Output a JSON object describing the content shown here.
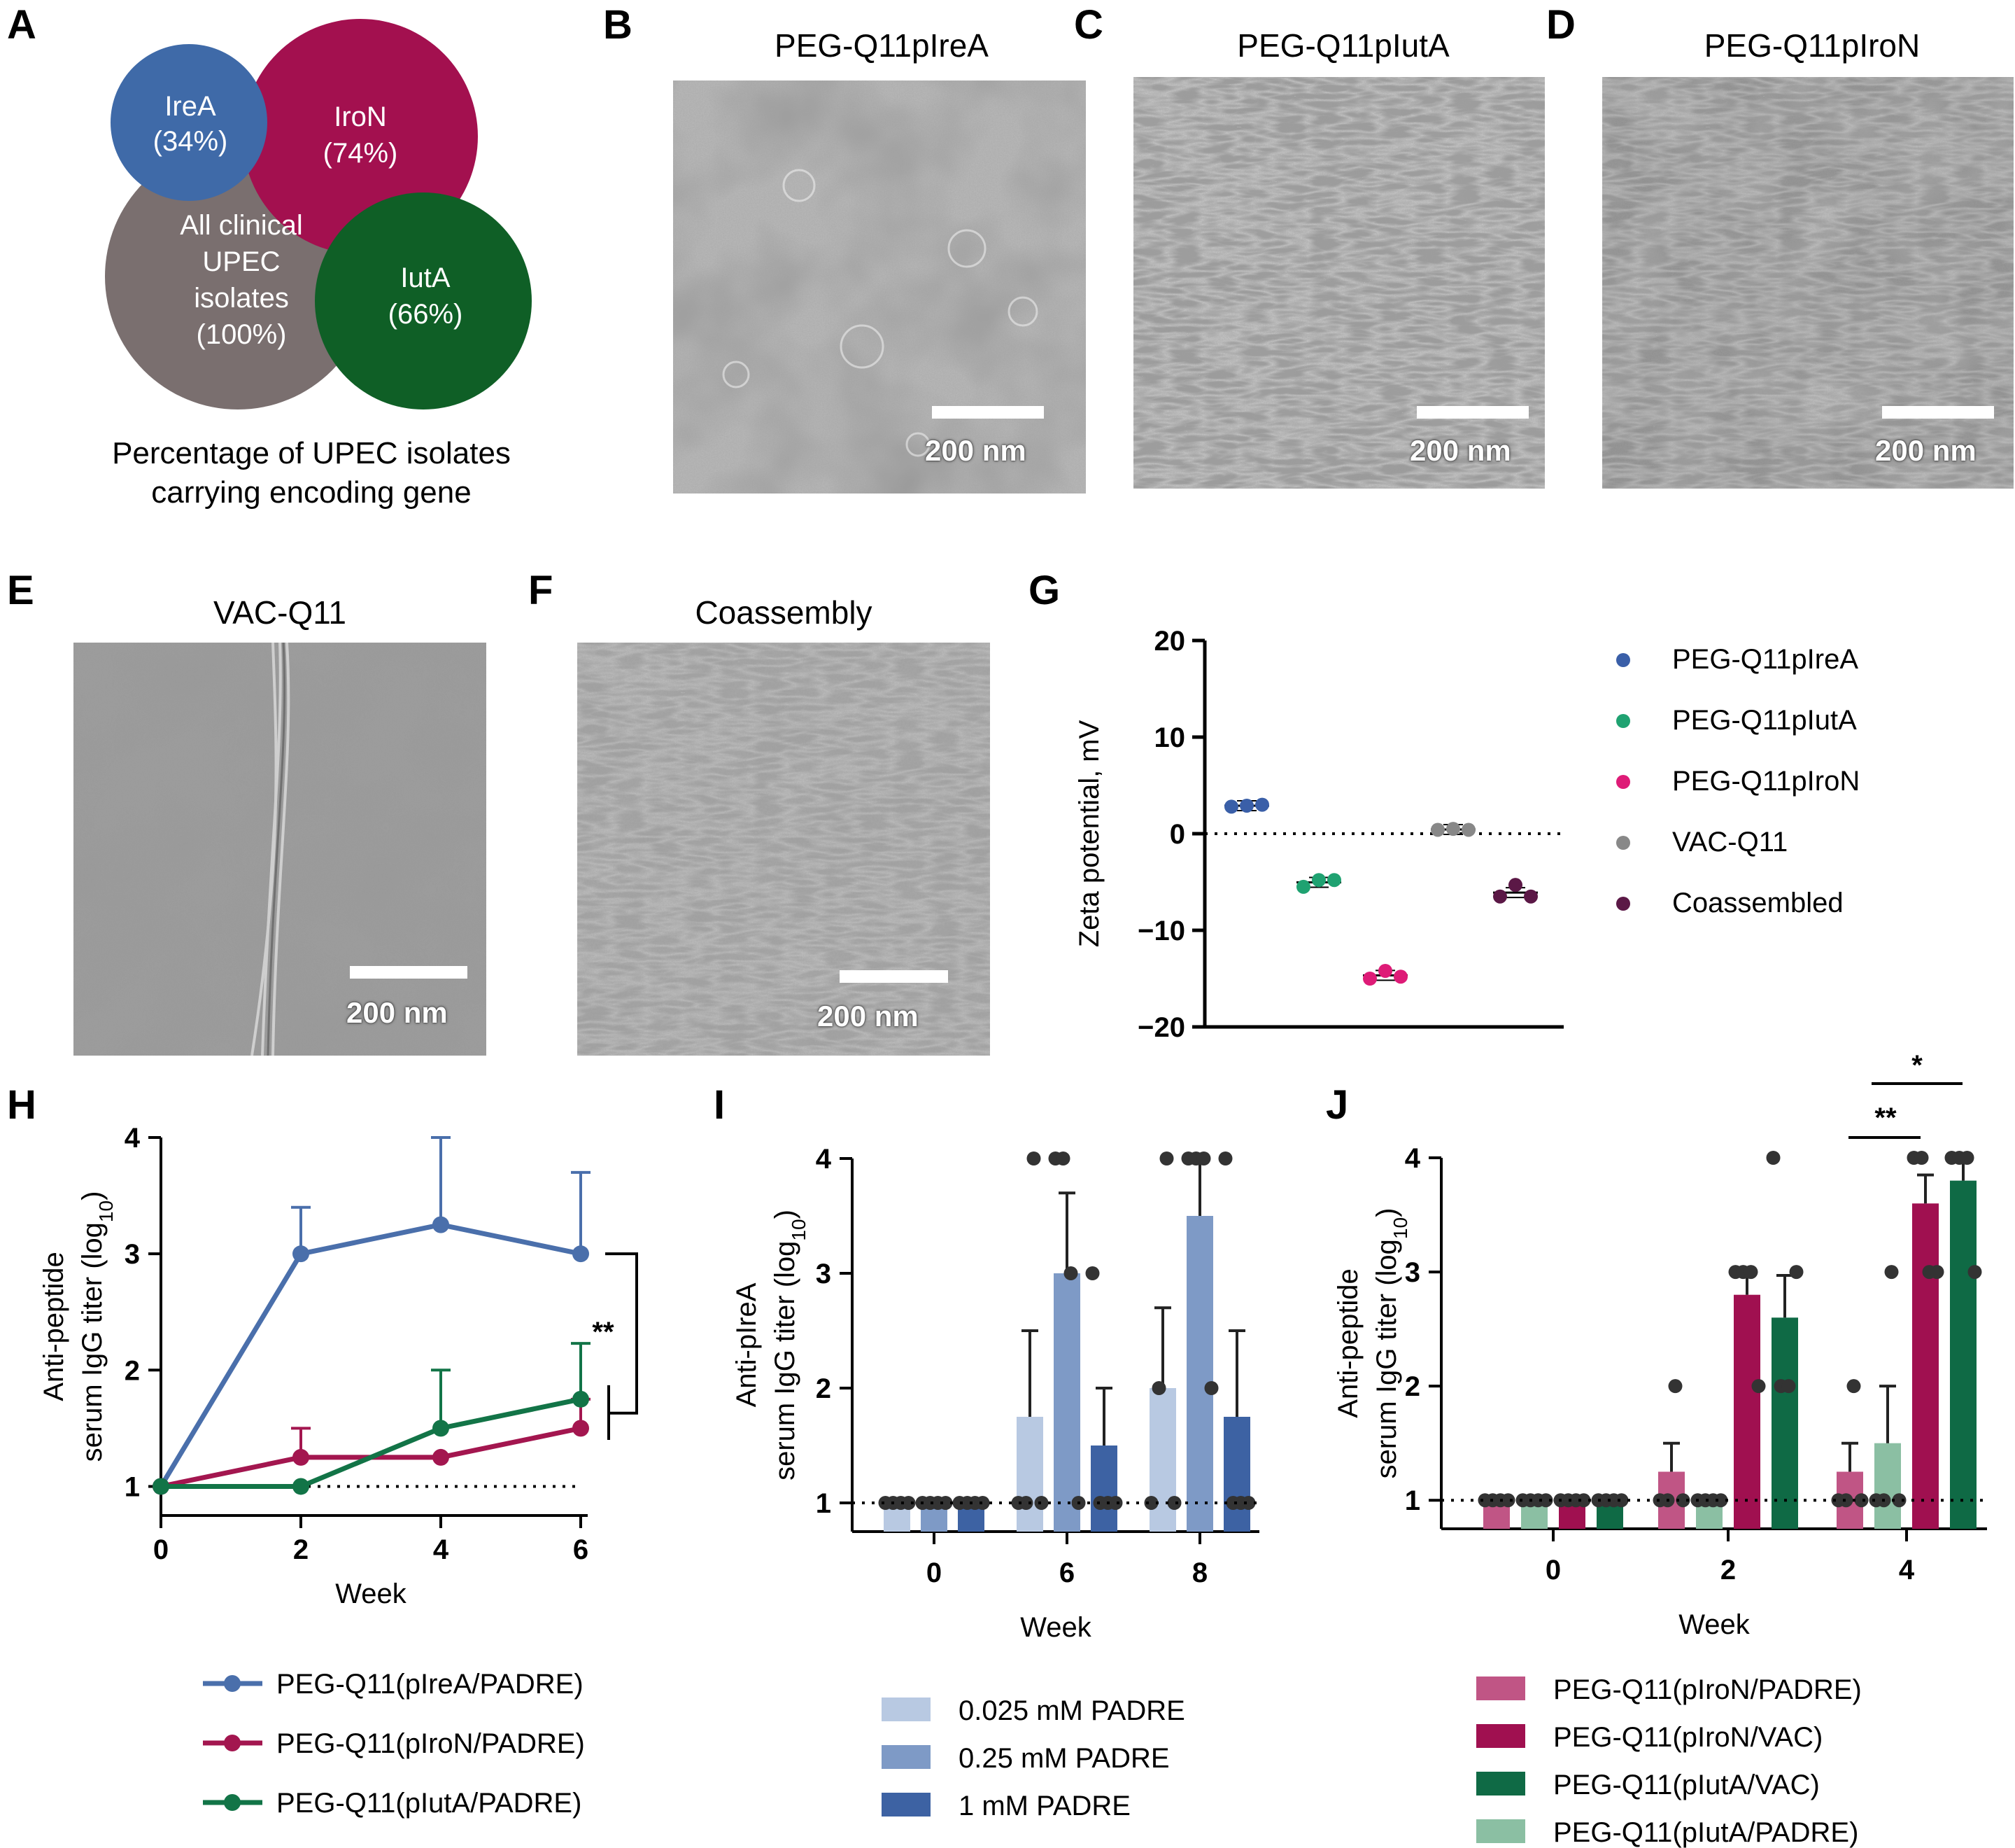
{
  "panels": {
    "A": "A",
    "B": "B",
    "C": "C",
    "D": "D",
    "E": "E",
    "F": "F",
    "G": "G",
    "H": "H",
    "I": "I",
    "J": "J"
  },
  "venn": {
    "circles": [
      {
        "name": "IreA",
        "pct": "(34%)",
        "color": "#3f6aa8"
      },
      {
        "name": "IroN",
        "pct": "(74%)",
        "color": "#a3104f"
      },
      {
        "name": "All clinical",
        "name2": "UPEC",
        "name3": "isolates",
        "pct": "(100%)",
        "color": "#7a6f6f"
      },
      {
        "name": "IutA",
        "pct": "(66%)",
        "color": "#0f5f26"
      }
    ],
    "caption_line1": "Percentage of UPEC isolates",
    "caption_line2": "carrying encoding gene"
  },
  "tem": {
    "B": {
      "title": "PEG-Q11pIreA",
      "scale": "200 nm"
    },
    "C": {
      "title": "PEG-Q11pIutA",
      "scale": "200 nm"
    },
    "D": {
      "title": "PEG-Q11pIroN",
      "scale": "200 nm"
    },
    "E": {
      "title": "VAC-Q11",
      "scale": "200 nm"
    },
    "F": {
      "title": "Coassembly",
      "scale": "200 nm"
    }
  },
  "chart_data": [
    {
      "panel": "G",
      "type": "scatter",
      "ylabel": "Zeta potential, mV",
      "ylim": [
        -20,
        20
      ],
      "yticks": [
        "−20",
        "−10",
        "0",
        "10",
        "20"
      ],
      "series": [
        {
          "name": "PEG-Q11pIreA",
          "color": "#3a5fa8",
          "values": [
            2.8,
            2.9,
            3.0
          ]
        },
        {
          "name": "PEG-Q11pIutA",
          "color": "#1fa271",
          "values": [
            -5.5,
            -4.8,
            -4.8
          ]
        },
        {
          "name": "PEG-Q11pIroN",
          "color": "#de1b77",
          "values": [
            -15.0,
            -14.2,
            -14.8
          ]
        },
        {
          "name": "VAC-Q11",
          "color": "#888888",
          "values": [
            0.4,
            0.5,
            0.4
          ]
        },
        {
          "name": "Coassembled",
          "color": "#5b1846",
          "values": [
            -6.5,
            -5.3,
            -6.5
          ]
        }
      ]
    },
    {
      "panel": "H",
      "type": "line",
      "xlabel": "Week",
      "ylabel_line1": "Anti-peptide",
      "ylabel_line2": "serum IgG titer (log",
      "ylabel_sub": "10",
      "ylabel_end": ")",
      "x": [
        0,
        2,
        4,
        6
      ],
      "xticks": [
        "0",
        "2",
        "4",
        "6"
      ],
      "yticks": [
        "1",
        "2",
        "3",
        "4"
      ],
      "ylim": [
        0.75,
        4
      ],
      "significance": "**",
      "series": [
        {
          "name": "PEG-Q11(pIreA/PADRE)",
          "color": "#4a6fab",
          "values": [
            1,
            3,
            3.25,
            3
          ],
          "err": [
            0,
            0.4,
            0.75,
            0.7
          ]
        },
        {
          "name": "PEG-Q11(pIroN/PADRE)",
          "color": "#a3164f",
          "values": [
            1,
            1.25,
            1.25,
            1.5
          ],
          "err": [
            0,
            0.25,
            0,
            0.25
          ]
        },
        {
          "name": "PEG-Q11(pIutA/PADRE)",
          "color": "#127447",
          "values": [
            1,
            1,
            1.5,
            1.75
          ],
          "err": [
            0,
            0,
            0.5,
            0.48
          ]
        }
      ]
    },
    {
      "panel": "I",
      "type": "bar",
      "xlabel": "Week",
      "ylabel_line1": "Anti-pIreA",
      "ylabel_line2": "serum IgG titer (log",
      "ylabel_sub": "10",
      "ylabel_end": ")",
      "categories": [
        "0",
        "6",
        "8"
      ],
      "yticks": [
        "1",
        "2",
        "3",
        "4"
      ],
      "ylim": [
        0.75,
        4
      ],
      "series": [
        {
          "name": "0.025 mM PADRE",
          "color": "#b8c9e2",
          "values": [
            1,
            1.75,
            2
          ],
          "err": [
            0,
            0.75,
            0.7
          ],
          "points": [
            [
              1,
              1,
              1,
              1
            ],
            [
              1,
              1,
              4,
              1
            ],
            [
              1,
              2,
              4,
              1
            ]
          ]
        },
        {
          "name": "0.25 mM PADRE",
          "color": "#7e9ac6",
          "values": [
            1,
            3,
            3.5
          ],
          "err": [
            0,
            0.7,
            0.5
          ],
          "points": [
            [
              1,
              1,
              1,
              1
            ],
            [
              4,
              4,
              3,
              1
            ],
            [
              4,
              4,
              4,
              2
            ]
          ]
        },
        {
          "name": "1 mM PADRE",
          "color": "#3d62a3",
          "values": [
            1,
            1.5,
            1.75
          ],
          "err": [
            0,
            0.5,
            0.75
          ],
          "points": [
            [
              1,
              1,
              1,
              1
            ],
            [
              3,
              1,
              1,
              1
            ],
            [
              4,
              1,
              1,
              1
            ]
          ]
        }
      ]
    },
    {
      "panel": "J",
      "type": "bar",
      "xlabel": "Week",
      "ylabel_line1": "Anti-peptide",
      "ylabel_line2": "serum IgG titer (log",
      "ylabel_sub": "10",
      "ylabel_end": ")",
      "categories": [
        "0",
        "2",
        "4"
      ],
      "yticks": [
        "1",
        "2",
        "3",
        "4"
      ],
      "ylim": [
        0.75,
        4
      ],
      "sig_double": "**",
      "sig_single": "*",
      "series": [
        {
          "name": "PEG-Q11(pIroN/PADRE)",
          "color": "#c05585",
          "values": [
            1,
            1.25,
            1.25
          ],
          "err": [
            0,
            0.25,
            0.25
          ],
          "points": [
            [
              1,
              1,
              1,
              1
            ],
            [
              1,
              1,
              2,
              1
            ],
            [
              1,
              1,
              2,
              1
            ]
          ]
        },
        {
          "name": "PEG-Q11(pIutA/PADRE)",
          "color": "#8bbfa3",
          "values": [
            1,
            1,
            1.5
          ],
          "err": [
            0,
            0,
            0.5
          ],
          "points": [
            [
              1,
              1,
              1,
              1
            ],
            [
              1,
              1,
              1,
              1
            ],
            [
              1,
              1,
              3,
              1
            ]
          ]
        },
        {
          "name": "PEG-Q11(pIroN/VAC)",
          "color": "#a01050",
          "values": [
            1,
            2.8,
            3.6
          ],
          "err": [
            0,
            0.2,
            0.25
          ],
          "points": [
            [
              1,
              1,
              1,
              1
            ],
            [
              3,
              3,
              3,
              2
            ],
            [
              4,
              4,
              3,
              3
            ]
          ]
        },
        {
          "name": "PEG-Q11(pIutA/VAC)",
          "color": "#0f6a45",
          "values": [
            1,
            2.6,
            3.8
          ],
          "err": [
            0,
            0.37,
            0.2
          ],
          "points": [
            [
              1,
              1,
              1,
              1
            ],
            [
              4,
              2,
              2,
              3
            ],
            [
              4,
              4,
              4,
              3
            ]
          ]
        }
      ],
      "legend_order": [
        "PEG-Q11(pIroN/PADRE)",
        "PEG-Q11(pIroN/VAC)",
        "PEG-Q11(pIutA/VAC)",
        "PEG-Q11(pIutA/PADRE)"
      ]
    }
  ]
}
